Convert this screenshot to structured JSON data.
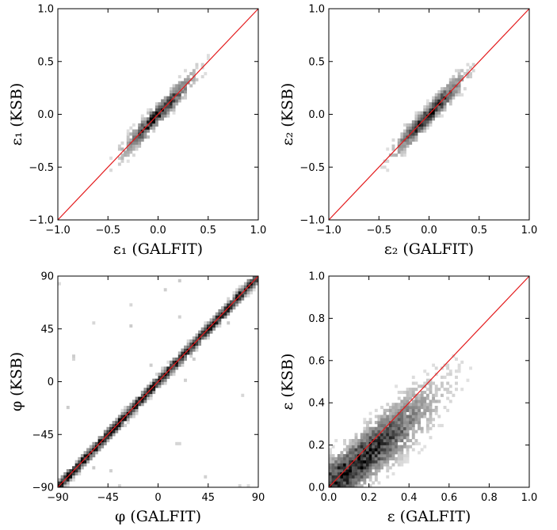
{
  "chart_data": [
    {
      "type": "heatmap",
      "panel": "top-left",
      "xlabel": "ε₁ (GALFIT)",
      "ylabel": "ε₁ (KSB)",
      "xlim": [
        -1.0,
        1.0
      ],
      "ylim": [
        -1.0,
        1.0
      ],
      "xticks": [
        "−1.0",
        "−0.5",
        "0.0",
        "0.5",
        "1.0"
      ],
      "yticks": [
        "−1.0",
        "−0.5",
        "0.0",
        "0.5",
        "1.0"
      ],
      "xtick_values": [
        -1.0,
        -0.5,
        0.0,
        0.5,
        1.0
      ],
      "ytick_values": [
        -1.0,
        -0.5,
        0.0,
        0.5,
        1.0
      ],
      "reference_line": {
        "x": [
          -1.0,
          1.0
        ],
        "y": [
          -1.0,
          1.0
        ],
        "color": "#e31a1c"
      },
      "density": {
        "x_range": [
          -0.65,
          0.6
        ],
        "slope": 1.0,
        "spread": 0.055,
        "center": 0.0,
        "width": 0.2,
        "wrap": false
      },
      "grid": false
    },
    {
      "type": "heatmap",
      "panel": "top-right",
      "xlabel": "ε₂ (GALFIT)",
      "ylabel": "ε₂ (KSB)",
      "xlim": [
        -1.0,
        1.0
      ],
      "ylim": [
        -1.0,
        1.0
      ],
      "xticks": [
        "−1.0",
        "−0.5",
        "0.0",
        "0.5",
        "1.0"
      ],
      "yticks": [
        "−1.0",
        "−0.5",
        "0.0",
        "0.5",
        "1.0"
      ],
      "xtick_values": [
        -1.0,
        -0.5,
        0.0,
        0.5,
        1.0
      ],
      "ytick_values": [
        -1.0,
        -0.5,
        0.0,
        0.5,
        1.0
      ],
      "reference_line": {
        "x": [
          -1.0,
          1.0
        ],
        "y": [
          -1.0,
          1.0
        ],
        "color": "#e31a1c"
      },
      "density": {
        "x_range": [
          -0.65,
          0.62
        ],
        "slope": 1.0,
        "spread": 0.055,
        "center": 0.0,
        "width": 0.2,
        "wrap": false
      },
      "grid": false
    },
    {
      "type": "heatmap",
      "panel": "bottom-left",
      "xlabel": "φ (GALFIT)",
      "ylabel": "φ (KSB)",
      "xlim": [
        -90,
        90
      ],
      "ylim": [
        -90,
        90
      ],
      "xticks": [
        "−90",
        "−45",
        "0",
        "45",
        "90"
      ],
      "yticks": [
        "−90",
        "−45",
        "0",
        "45",
        "90"
      ],
      "xtick_values": [
        -90,
        -45,
        0,
        45,
        90
      ],
      "ytick_values": [
        -90,
        -45,
        0,
        45,
        90
      ],
      "reference_line": {
        "x": [
          -90,
          90
        ],
        "y": [
          -90,
          90
        ],
        "color": "#e31a1c"
      },
      "density": {
        "x_range": [
          -90,
          90
        ],
        "slope": 1.0,
        "spread": 3.5,
        "center": 0,
        "width": 200,
        "wrap": true
      },
      "grid": false
    },
    {
      "type": "heatmap",
      "panel": "bottom-right",
      "xlabel": "ε (GALFIT)",
      "ylabel": "ε (KSB)",
      "xlim": [
        0.0,
        1.0
      ],
      "ylim": [
        0.0,
        1.0
      ],
      "xticks": [
        "0.0",
        "0.2",
        "0.4",
        "0.6",
        "0.8",
        "1.0"
      ],
      "yticks": [
        "0.0",
        "0.2",
        "0.4",
        "0.6",
        "0.8",
        "1.0"
      ],
      "xtick_values": [
        0.0,
        0.2,
        0.4,
        0.6,
        0.8,
        1.0
      ],
      "ytick_values": [
        0.0,
        0.2,
        0.4,
        0.6,
        0.8,
        1.0
      ],
      "reference_line": {
        "x": [
          0.0,
          1.0
        ],
        "y": [
          0.0,
          1.0
        ],
        "color": "#e31a1c"
      },
      "density": {
        "x_range": [
          0.0,
          0.72
        ],
        "slope": 0.8,
        "spread": 0.07,
        "center": 0.12,
        "width": 0.22,
        "wrap": false
      },
      "grid": false
    }
  ]
}
